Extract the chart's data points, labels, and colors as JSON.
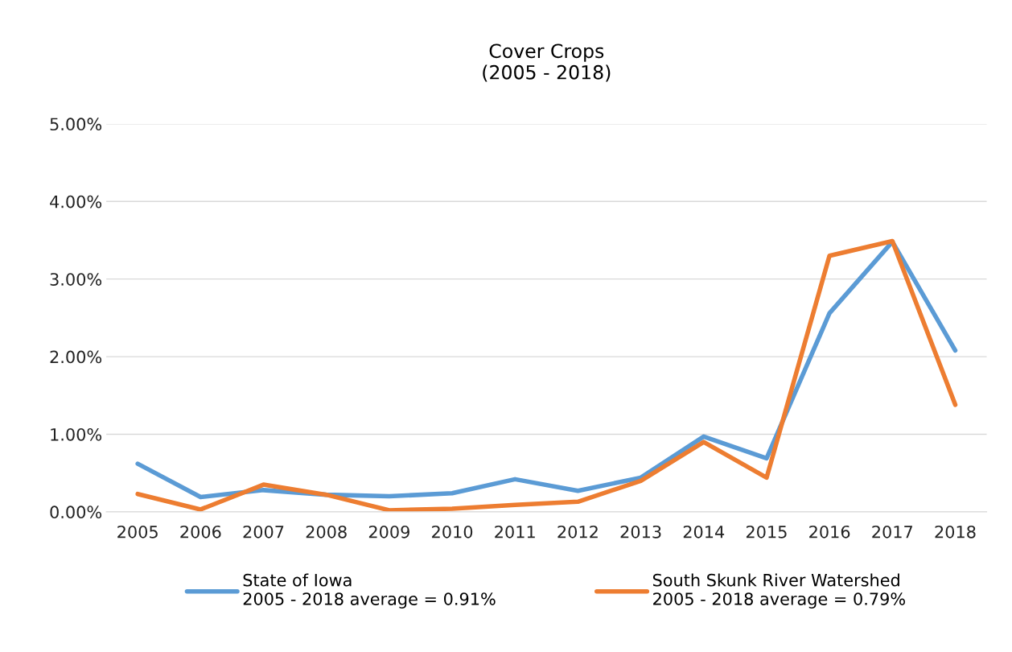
{
  "chart_data": {
    "type": "line",
    "title": "Cover Crops\n(2005 - 2018)",
    "categories": [
      "2005",
      "2006",
      "2007",
      "2008",
      "2009",
      "2010",
      "2011",
      "2012",
      "2013",
      "2014",
      "2015",
      "2016",
      "2017",
      "2018"
    ],
    "series": [
      {
        "name": "State of Iowa\n2005 - 2018 average = 0.91%",
        "color": "#5b9bd5",
        "values": [
          0.62,
          0.19,
          0.28,
          0.22,
          0.2,
          0.24,
          0.42,
          0.27,
          0.44,
          0.97,
          0.69,
          2.56,
          3.48,
          2.08
        ]
      },
      {
        "name": "South Skunk River Watershed\n2005 - 2018 average = 0.79%",
        "color": "#ed7d31",
        "values": [
          0.23,
          0.03,
          0.35,
          0.22,
          0.02,
          0.04,
          0.09,
          0.13,
          0.4,
          0.9,
          0.44,
          3.3,
          3.49,
          1.38
        ]
      }
    ],
    "ylim": [
      0,
      5
    ],
    "yticks": [
      {
        "value": 0,
        "label": "0.00%"
      },
      {
        "value": 1,
        "label": "1.00%"
      },
      {
        "value": 2,
        "label": "2.00%"
      },
      {
        "value": 3,
        "label": "3.00%"
      },
      {
        "value": 4,
        "label": "4.00%"
      },
      {
        "value": 5,
        "label": "5.00%"
      }
    ],
    "grid": "y",
    "legend": "bottom",
    "marker": "none",
    "line_style": "solid"
  }
}
